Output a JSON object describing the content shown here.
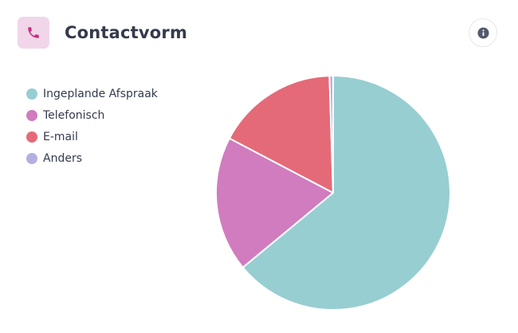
{
  "header": {
    "title": "Contactvorm",
    "icon": "phone-icon",
    "icon_color": "#c4307f",
    "icon_bg": "#f0d6e8"
  },
  "info_button": {
    "icon": "info-icon"
  },
  "chart_data": {
    "type": "pie",
    "title": "",
    "legend_position": "top-left",
    "series": [
      {
        "name": "Ingeplande Afspraak",
        "value": 64.0,
        "color": "#97ced1"
      },
      {
        "name": "Telefonisch",
        "value": 18.7,
        "color": "#d07cbe"
      },
      {
        "name": "E-mail",
        "value": 16.8,
        "color": "#e56a78"
      },
      {
        "name": "Anders",
        "value": 0.5,
        "color": "#b3b0e1"
      }
    ]
  }
}
